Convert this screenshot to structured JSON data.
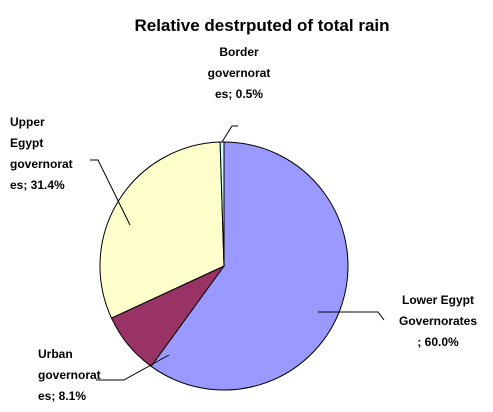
{
  "chart_data": {
    "type": "pie",
    "title": "Relative destrputed of total rain",
    "slices": [
      {
        "name": "Lower Egypt Governorates",
        "value": 60.0,
        "label_lines": [
          "Lower Egypt",
          "Governorates",
          "; 60.0%"
        ],
        "color": "#9999ff"
      },
      {
        "name": "Urban governorates",
        "value": 8.1,
        "label_lines": [
          "Urban",
          "governorat",
          "es; 8.1%"
        ],
        "color": "#993366"
      },
      {
        "name": "Upper Egypt governorates",
        "value": 31.4,
        "label_lines": [
          "Upper",
          "Egypt",
          "governorat",
          "es; 31.4%"
        ],
        "color": "#ffffcc"
      },
      {
        "name": "Border governorates",
        "value": 0.5,
        "label_lines": [
          "Border",
          "governorat",
          "es; 0.5%"
        ],
        "color": "#ccffff"
      }
    ],
    "start_angle_deg": 0,
    "direction": "clockwise",
    "legend": "none"
  }
}
